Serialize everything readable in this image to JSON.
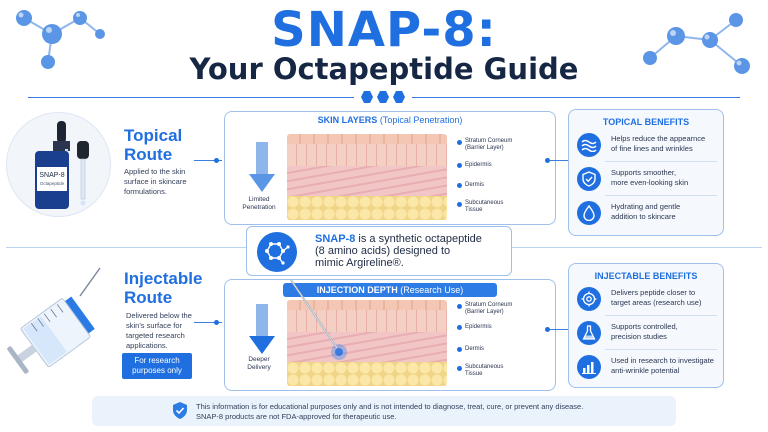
{
  "title": {
    "main": "SNAP-8:",
    "subtitle": "Your Octapeptide Guide"
  },
  "topical": {
    "title_line1": "Topical",
    "title_line2": "Route",
    "desc_line1": "Applied to the skin",
    "desc_line2": "surface in skincare",
    "desc_line3": "formulations.",
    "bottle_label": "SNAP-8",
    "bottle_sublabel": "Octapeptide"
  },
  "injectable": {
    "title_line1": "Injectable",
    "title_line2": "Route",
    "desc_line1": "Delivered below the",
    "desc_line2": "skin's surface for",
    "desc_line3": "targeted research",
    "desc_line4": "applications.",
    "tag_line1": "For research",
    "tag_line2": "purposes only"
  },
  "skin_layers_panel": {
    "header_bold": "SKIN LAYERS",
    "header_rest": "(Topical Penetration)",
    "depth_line1": "Limited",
    "depth_line2": "Penetration",
    "layers": [
      {
        "line1": "Stratum Corneum",
        "line2": "(Barrier Layer)"
      },
      {
        "line1": "Epidermis",
        "line2": ""
      },
      {
        "line1": "Dermis",
        "line2": ""
      },
      {
        "line1": "Subcutaneous",
        "line2": "Tissue"
      }
    ]
  },
  "injection_panel": {
    "header_bold": "INJECTION DEPTH",
    "header_rest": "(Research Use)",
    "depth_line1": "Deeper",
    "depth_line2": "Delivery",
    "layers": [
      {
        "line1": "Stratum Corneum",
        "line2": "(Barrier Layer)"
      },
      {
        "line1": "Epidermis",
        "line2": ""
      },
      {
        "line1": "Dermis",
        "line2": ""
      },
      {
        "line1": "Subcutaneous",
        "line2": "Tissue"
      }
    ]
  },
  "info": {
    "highlight": "SNAP-8",
    "line1_rest": " is a synthetic octapeptide",
    "line2": "(8 amino acids) designed to",
    "line3": "mimic Argireline®."
  },
  "topical_benefits": {
    "header": "TOPICAL BENEFITS",
    "items": [
      {
        "icon": "waves-icon",
        "line1": "Helps reduce the appearnce",
        "line2": "of fine lines and wrinkles"
      },
      {
        "icon": "shield-check-icon",
        "line1": "Supports smoother,",
        "line2": "more even-looking skin"
      },
      {
        "icon": "droplet-icon",
        "line1": "Hydrating and gentle",
        "line2": "addition to skincare"
      }
    ]
  },
  "injectable_benefits": {
    "header": "INJECTABLE BENEFITS",
    "items": [
      {
        "icon": "target-icon",
        "line1": "Delivers peptide closer to",
        "line2": "target areas (research use)"
      },
      {
        "icon": "flask-icon",
        "line1": "Supports controlled,",
        "line2": "precision studies"
      },
      {
        "icon": "bar-chart-icon",
        "line1": "Used in research to investigate",
        "line2": "anti-wrinkle potential"
      }
    ]
  },
  "disclaimer": {
    "line1": "This information is for educational purposes only and is not intended to diagnose, treat, cure, or prevent any disease.",
    "line2": "SNAP-8 products are not FDA-approved for therapeutic use."
  },
  "colors": {
    "accent": "#1f6fe0",
    "dark_text": "#152744",
    "panel_border": "#9fc0ea"
  }
}
